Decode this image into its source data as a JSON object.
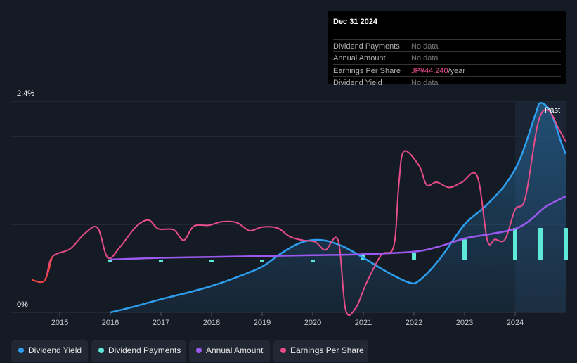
{
  "chart_data": {
    "type": "line",
    "x_ticks": [
      "2015",
      "2016",
      "2017",
      "2018",
      "2019",
      "2020",
      "2021",
      "2022",
      "2023",
      "2024"
    ],
    "y_ticks": [
      "2.4%",
      "0%"
    ],
    "ylim": [
      0,
      2.4
    ],
    "forecast_label": "Past",
    "series": [
      {
        "name": "Dividend Yield",
        "color": "#2e9ef0",
        "type": "area",
        "points": [
          [
            2016.0,
            0.0
          ],
          [
            2016.5,
            0.07
          ],
          [
            2017.0,
            0.15
          ],
          [
            2017.5,
            0.22
          ],
          [
            2018.0,
            0.3
          ],
          [
            2018.5,
            0.4
          ],
          [
            2019.0,
            0.52
          ],
          [
            2019.4,
            0.68
          ],
          [
            2019.8,
            0.8
          ],
          [
            2020.2,
            0.82
          ],
          [
            2020.6,
            0.75
          ],
          [
            2021.0,
            0.62
          ],
          [
            2021.5,
            0.45
          ],
          [
            2021.9,
            0.34
          ],
          [
            2022.1,
            0.36
          ],
          [
            2022.5,
            0.6
          ],
          [
            2023.0,
            1.0
          ],
          [
            2023.4,
            1.2
          ],
          [
            2023.8,
            1.45
          ],
          [
            2024.1,
            1.75
          ],
          [
            2024.4,
            2.25
          ],
          [
            2024.5,
            2.38
          ],
          [
            2024.7,
            2.28
          ],
          [
            2024.9,
            1.95
          ],
          [
            2025.0,
            1.8
          ]
        ]
      },
      {
        "name": "Dividend Payments",
        "color": "#5ee8d8",
        "type": "bar",
        "points": [
          [
            2016.0,
            0.6
          ],
          [
            2017.0,
            0.6
          ],
          [
            2018.0,
            0.6
          ],
          [
            2019.0,
            0.6
          ],
          [
            2020.0,
            0.6
          ],
          [
            2021.0,
            0.67
          ],
          [
            2022.0,
            0.68
          ],
          [
            2023.0,
            0.83
          ],
          [
            2024.0,
            0.96
          ],
          [
            2024.5,
            0.96
          ],
          [
            2025.0,
            0.96
          ]
        ]
      },
      {
        "name": "Annual Amount",
        "color": "#9b59f0",
        "type": "line",
        "points": [
          [
            2016.0,
            0.6
          ],
          [
            2017.0,
            0.62
          ],
          [
            2018.0,
            0.63
          ],
          [
            2019.0,
            0.64
          ],
          [
            2020.0,
            0.65
          ],
          [
            2021.0,
            0.66
          ],
          [
            2022.0,
            0.69
          ],
          [
            2022.5,
            0.75
          ],
          [
            2023.0,
            0.84
          ],
          [
            2023.5,
            0.89
          ],
          [
            2024.0,
            0.95
          ],
          [
            2024.3,
            1.05
          ],
          [
            2024.6,
            1.2
          ],
          [
            2025.0,
            1.32
          ]
        ]
      },
      {
        "name": "Earnings Per Share",
        "color": "#e84d8a",
        "type": "line",
        "points": [
          [
            2014.45,
            0.37
          ],
          [
            2014.7,
            0.36
          ],
          [
            2014.85,
            0.63
          ],
          [
            2015.2,
            0.72
          ],
          [
            2015.5,
            0.9
          ],
          [
            2015.75,
            0.96
          ],
          [
            2015.95,
            0.62
          ],
          [
            2016.2,
            0.75
          ],
          [
            2016.5,
            0.97
          ],
          [
            2016.75,
            1.05
          ],
          [
            2016.95,
            0.95
          ],
          [
            2017.25,
            0.94
          ],
          [
            2017.45,
            0.82
          ],
          [
            2017.65,
            0.98
          ],
          [
            2017.95,
            0.99
          ],
          [
            2018.2,
            1.03
          ],
          [
            2018.5,
            1.02
          ],
          [
            2018.75,
            0.93
          ],
          [
            2019.0,
            0.97
          ],
          [
            2019.3,
            0.96
          ],
          [
            2019.55,
            0.86
          ],
          [
            2019.8,
            0.82
          ],
          [
            2020.05,
            0.8
          ],
          [
            2020.25,
            0.71
          ],
          [
            2020.5,
            0.82
          ],
          [
            2020.65,
            0.03
          ],
          [
            2020.85,
            0.05
          ],
          [
            2021.05,
            0.32
          ],
          [
            2021.35,
            0.65
          ],
          [
            2021.6,
            0.75
          ],
          [
            2021.7,
            1.45
          ],
          [
            2021.8,
            1.83
          ],
          [
            2022.1,
            1.67
          ],
          [
            2022.25,
            1.45
          ],
          [
            2022.45,
            1.48
          ],
          [
            2022.7,
            1.42
          ],
          [
            2022.95,
            1.48
          ],
          [
            2023.25,
            1.55
          ],
          [
            2023.45,
            0.82
          ],
          [
            2023.6,
            0.83
          ],
          [
            2023.8,
            0.83
          ],
          [
            2024.0,
            1.17
          ],
          [
            2024.2,
            1.3
          ],
          [
            2024.45,
            2.15
          ],
          [
            2024.65,
            2.3
          ],
          [
            2024.85,
            2.1
          ],
          [
            2025.0,
            1.94
          ]
        ]
      }
    ]
  },
  "tooltip": {
    "date": "Dec 31 2024",
    "rows": [
      {
        "label": "Dividend Payments",
        "value": "No data",
        "unit": ""
      },
      {
        "label": "Annual Amount",
        "value": "No data",
        "unit": ""
      },
      {
        "label": "Earnings Per Share",
        "value": "JP¥44.240",
        "unit": "/year"
      },
      {
        "label": "Dividend Yield",
        "value": "No data",
        "unit": ""
      }
    ]
  },
  "legend": [
    {
      "label": "Dividend Yield",
      "color": "#2e9ef0"
    },
    {
      "label": "Dividend Payments",
      "color": "#5ee8d8"
    },
    {
      "label": "Annual Amount",
      "color": "#9b59f0"
    },
    {
      "label": "Earnings Per Share",
      "color": "#e84d8a"
    }
  ]
}
